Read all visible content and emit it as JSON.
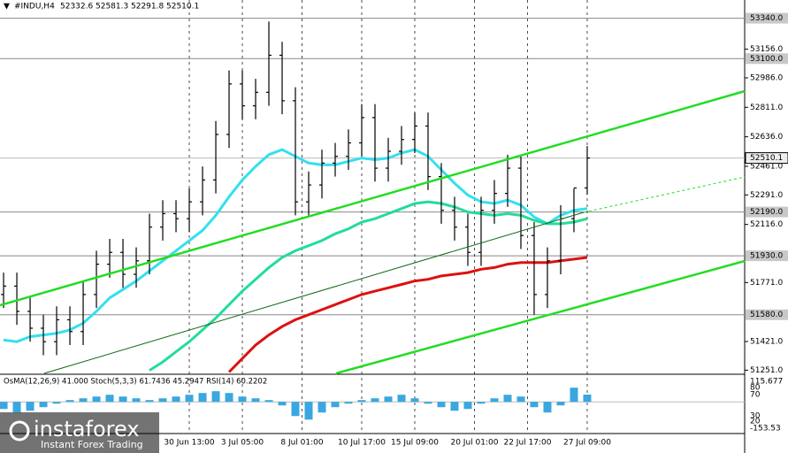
{
  "chart_data": {
    "type": "ohlc",
    "symbol": "#INDU,H4",
    "x": [
      0,
      1,
      2,
      3,
      4,
      5,
      6,
      7,
      8,
      9,
      10,
      11,
      12,
      13,
      14,
      15,
      16,
      17,
      18,
      19,
      20,
      21,
      22,
      23,
      24,
      25,
      26,
      27,
      28,
      29,
      30,
      31,
      32,
      33,
      34,
      35,
      36,
      37,
      38,
      39,
      40,
      41,
      42,
      43,
      44
    ],
    "open": [
      51700,
      51750,
      51600,
      51500,
      51420,
      51550,
      51480,
      51700,
      51880,
      51950,
      51820,
      51900,
      52100,
      52180,
      52150,
      52250,
      52380,
      52650,
      52950,
      52820,
      52900,
      53120,
      52850,
      52250,
      52350,
      52480,
      52520,
      52600,
      52750,
      52450,
      52550,
      52620,
      52700,
      52400,
      52200,
      52100,
      51950,
      52200,
      52300,
      52450,
      52050,
      51700,
      51900,
      52150,
      52332.6
    ],
    "high": [
      51830,
      51830,
      51680,
      51580,
      51630,
      51630,
      51780,
      51960,
      52030,
      52030,
      51980,
      52180,
      52260,
      52260,
      52330,
      52460,
      52730,
      53030,
      53030,
      52980,
      53320,
      53200,
      52930,
      52430,
      52560,
      52600,
      52680,
      52830,
      52830,
      52630,
      52700,
      52780,
      52780,
      52480,
      52280,
      52180,
      52280,
      52380,
      52530,
      52530,
      52130,
      51980,
      52230,
      52330,
      52581.3
    ],
    "low": [
      51620,
      51520,
      51420,
      51340,
      51340,
      51400,
      51400,
      51620,
      51800,
      51740,
      51740,
      51820,
      52020,
      52070,
      52070,
      52170,
      52300,
      52570,
      52740,
      52740,
      52820,
      52770,
      52170,
      52170,
      52270,
      52400,
      52440,
      52520,
      52370,
      52370,
      52470,
      52540,
      52320,
      52120,
      52020,
      51870,
      51870,
      52120,
      52220,
      51970,
      51580,
      51620,
      51820,
      52070,
      52291.8
    ],
    "close": [
      51750,
      51600,
      51500,
      51420,
      51550,
      51480,
      51700,
      51880,
      51950,
      51820,
      51900,
      52100,
      52180,
      52150,
      52250,
      52380,
      52650,
      52950,
      52820,
      52900,
      53120,
      52850,
      52250,
      52350,
      52480,
      52520,
      52600,
      52750,
      52450,
      52550,
      52620,
      52700,
      52400,
      52200,
      52100,
      51950,
      52200,
      52300,
      52450,
      52050,
      51700,
      51900,
      52150,
      52332.6,
      52510.1
    ],
    "series": [
      {
        "color": "#33e0f0",
        "values": [
          51430,
          51420,
          51450,
          51460,
          51470,
          51490,
          51530,
          51600,
          51680,
          51730,
          51780,
          51840,
          51900,
          51960,
          52020,
          52080,
          52170,
          52280,
          52380,
          52460,
          52530,
          52560,
          52520,
          52480,
          52470,
          52470,
          52490,
          52510,
          52500,
          52510,
          52540,
          52560,
          52520,
          52440,
          52360,
          52290,
          52250,
          52240,
          52260,
          52230,
          52160,
          52120,
          52170,
          52200,
          52210
        ]
      },
      {
        "color": "#22dd99",
        "values": [
          null,
          null,
          null,
          null,
          null,
          null,
          null,
          null,
          null,
          null,
          null,
          51250,
          51300,
          51360,
          51420,
          51490,
          51560,
          51640,
          51720,
          51790,
          51860,
          51920,
          51960,
          51990,
          52020,
          52060,
          52090,
          52130,
          52150,
          52180,
          52210,
          52240,
          52250,
          52240,
          52220,
          52190,
          52180,
          52170,
          52180,
          52170,
          52140,
          52120,
          52120,
          52130,
          52150
        ]
      },
      {
        "color": "#dd1111",
        "values": [
          null,
          null,
          null,
          null,
          null,
          null,
          null,
          null,
          null,
          null,
          null,
          null,
          null,
          null,
          null,
          null,
          null,
          51240,
          51320,
          51400,
          51460,
          51510,
          51550,
          51580,
          51610,
          51640,
          51670,
          51700,
          51720,
          51740,
          51760,
          51780,
          51790,
          51810,
          51820,
          51830,
          51850,
          51860,
          51880,
          51890,
          51890,
          51890,
          51900,
          51910,
          51920
        ]
      }
    ],
    "ylim": [
      51232,
      53448
    ],
    "yticks": [
      {
        "value": 53156,
        "label": "53156.0"
      },
      {
        "value": 52986,
        "label": "52986.0"
      },
      {
        "value": 52811,
        "label": "52811.0"
      },
      {
        "value": 52636,
        "label": "52636.0"
      },
      {
        "value": 52461,
        "label": "52461.0"
      },
      {
        "value": 52291,
        "label": "52291.0"
      },
      {
        "value": 52116,
        "label": "52116.0"
      },
      {
        "value": 51771,
        "label": "51771.0"
      },
      {
        "value": 51421,
        "label": "51421.0"
      },
      {
        "value": 51251,
        "label": "51251.0"
      }
    ],
    "levels": [
      {
        "value": 53340,
        "label": "53340.0"
      },
      {
        "value": 53100,
        "label": "53100.0"
      },
      {
        "value": 52190,
        "label": "52190.0"
      },
      {
        "value": 51930,
        "label": "51930.0"
      },
      {
        "value": 51580,
        "label": "51580.0"
      }
    ],
    "xlim": [
      -0.27,
      55.87
    ],
    "xticks": [
      {
        "value": 14,
        "label": "30 Jun 13:00"
      },
      {
        "value": 18,
        "label": "3 Jul 05:00"
      },
      {
        "value": 22.5,
        "label": "8 Jul 01:00"
      },
      {
        "value": 27,
        "label": "10 Jul 17:00"
      },
      {
        "value": 31,
        "label": "15 Jul 09:00"
      },
      {
        "value": 35.5,
        "label": "20 Jul 01:00"
      },
      {
        "value": 39.5,
        "label": "22 Jul 17:00"
      },
      {
        "value": 44,
        "label": "27 Jul 09:00"
      }
    ],
    "grid": true,
    "osma": {
      "label": "OsMA(12,26,9) 41.000  Stoch(5,3,3) 61.7436 45.2947  RSI(14) 60.2202",
      "color": "#3aa7e0",
      "values": [
        -40,
        -60,
        -50,
        -30,
        -10,
        10,
        20,
        30,
        40,
        30,
        20,
        10,
        20,
        30,
        40,
        50,
        60,
        50,
        30,
        20,
        10,
        -20,
        -80,
        -100,
        -60,
        -30,
        -10,
        10,
        20,
        30,
        40,
        20,
        -10,
        -30,
        -50,
        -40,
        -10,
        20,
        40,
        30,
        -30,
        -60,
        -20,
        80,
        41
      ],
      "ylim": [
        -153.53,
        115.677
      ],
      "scale_labels": [
        "115.677",
        "80",
        "70",
        "30",
        "20",
        "-153.53"
      ]
    },
    "watermark": {
      "brand": "instaforex",
      "tagline": "Instant Forex Trading"
    }
  }
}
